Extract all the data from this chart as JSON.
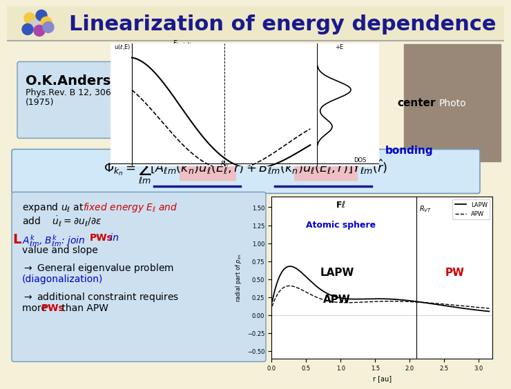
{
  "title": "Linearization of energy dependence",
  "title_color": "#1a1a8c",
  "title_fontsize": 22,
  "bg_color": "#f5f0d8",
  "andersen_line1": "O.K.Andersen,",
  "andersen_line2": "Phys.Rev. B 12, 3060",
  "andersen_line3": "(1975)",
  "andersen_bg": "#cce0f0",
  "formula_box_bg": "#d0e8f8",
  "left_box_bg": "#cce0f0",
  "color_red": "#cc0000",
  "color_blue": "#0000cc",
  "color_dark_blue": "#1a1a8c",
  "color_cyan_circle": "#4488cc",
  "color_dark_red_circle": "#883333",
  "color_photo_bg": "#998877"
}
